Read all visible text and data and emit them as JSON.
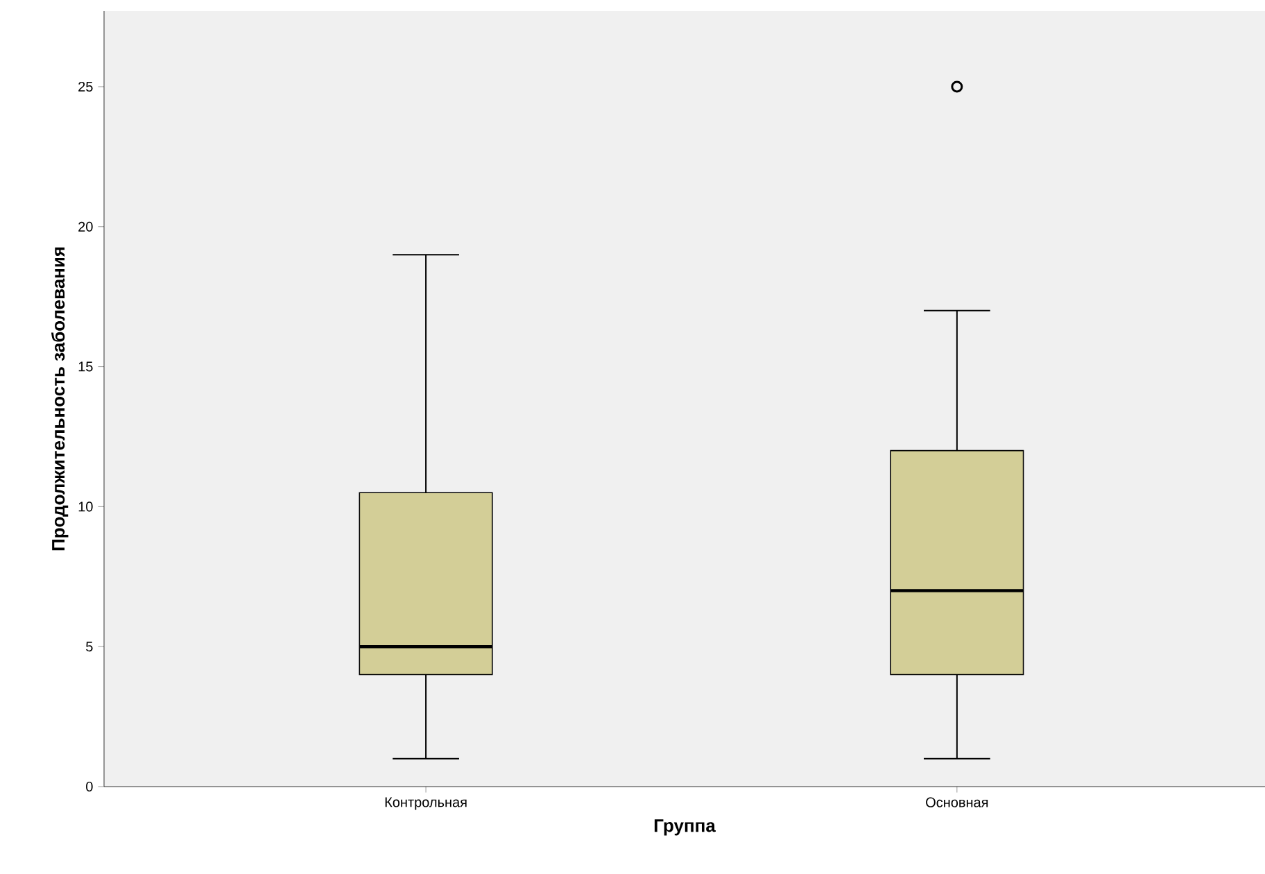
{
  "chart_data": {
    "type": "box",
    "xlabel": "Группа",
    "ylabel": "Продолжительность заболевания",
    "categories": [
      "Контрольная",
      "Основная"
    ],
    "color": "#d3ce97",
    "boxes": [
      {
        "low": 1,
        "q1": 4,
        "median": 5,
        "q3": 10.5,
        "high": 19
      },
      {
        "low": 1,
        "q1": 4,
        "median": 7,
        "q3": 12,
        "high": 17,
        "outliers": [
          25
        ]
      }
    ],
    "ylim": [
      0,
      27.7
    ],
    "yticks": [
      0,
      5,
      10,
      15,
      20,
      25
    ]
  }
}
